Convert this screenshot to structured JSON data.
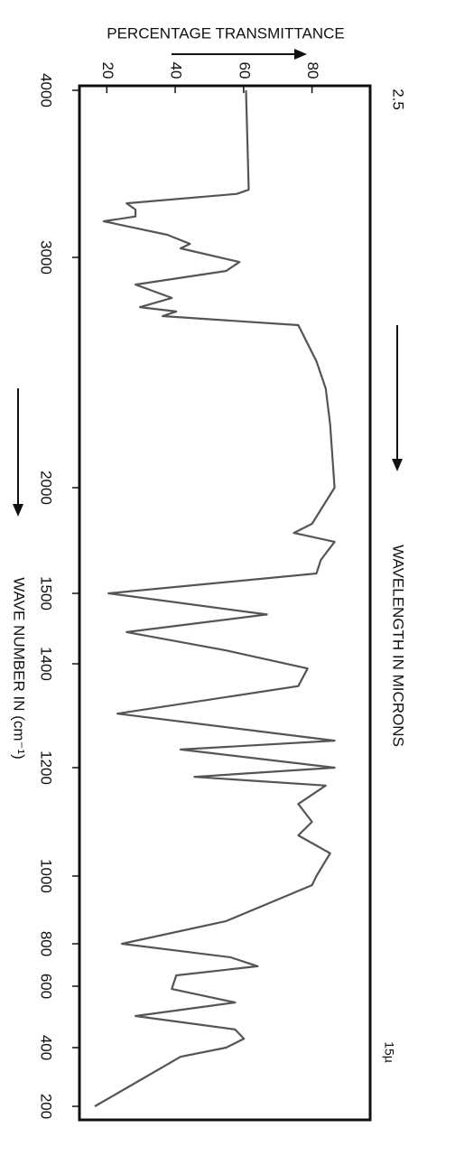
{
  "chart_data": {
    "type": "line",
    "ylabel": "PERCENTAGE TRANSMITTANCE",
    "xlabel": "WAVE NUMBER IN (cm⁻¹)",
    "annotations": [
      "WAVELENGTH IN MICRONS",
      "2.5",
      "15µ"
    ],
    "xlim": [
      4000,
      200
    ],
    "xticks": [
      4000,
      3000,
      2000,
      1500,
      1400,
      1200,
      1000,
      800,
      600,
      400,
      200
    ],
    "ylim": [
      12,
      97
    ],
    "yticks": [
      20,
      40,
      60,
      80
    ],
    "color": "#555555",
    "x": [
      4000,
      3405,
      3380,
      3324,
      3286,
      3245,
      3216,
      3135,
      3081,
      3054,
      2980,
      2941,
      2882,
      2824,
      2784,
      2765,
      2745,
      2706,
      2667,
      2549,
      2431,
      2275,
      2000,
      1829,
      1786,
      1744,
      1658,
      1594,
      1500,
      1470,
      1445,
      1419,
      1391,
      1357,
      1304,
      1252,
      1235,
      1200,
      1183,
      1167,
      1133,
      1100,
      1075,
      1042,
      1000,
      973,
      867,
      800,
      736,
      694,
      651,
      591,
      547,
      503,
      459,
      429,
      400,
      369,
      200
    ],
    "values": [
      60.7,
      61.5,
      58,
      25.8,
      28.4,
      28.4,
      19.1,
      37.7,
      44.3,
      41.6,
      58.8,
      54.9,
      28.4,
      39,
      29.7,
      40.3,
      36.3,
      76,
      77.3,
      81.3,
      84,
      85.3,
      86.6,
      80,
      74.7,
      86.6,
      82.6,
      81.3,
      20.5,
      66.8,
      25.8,
      54.9,
      78.7,
      76,
      23.1,
      86.6,
      41.6,
      86.6,
      45.6,
      84,
      76,
      80,
      76,
      85.3,
      81.3,
      80,
      54.9,
      24.4,
      56.2,
      64.1,
      40.3,
      39,
      57.5,
      28.4,
      57.5,
      60.1,
      54.9,
      41.6,
      16.5
    ]
  }
}
